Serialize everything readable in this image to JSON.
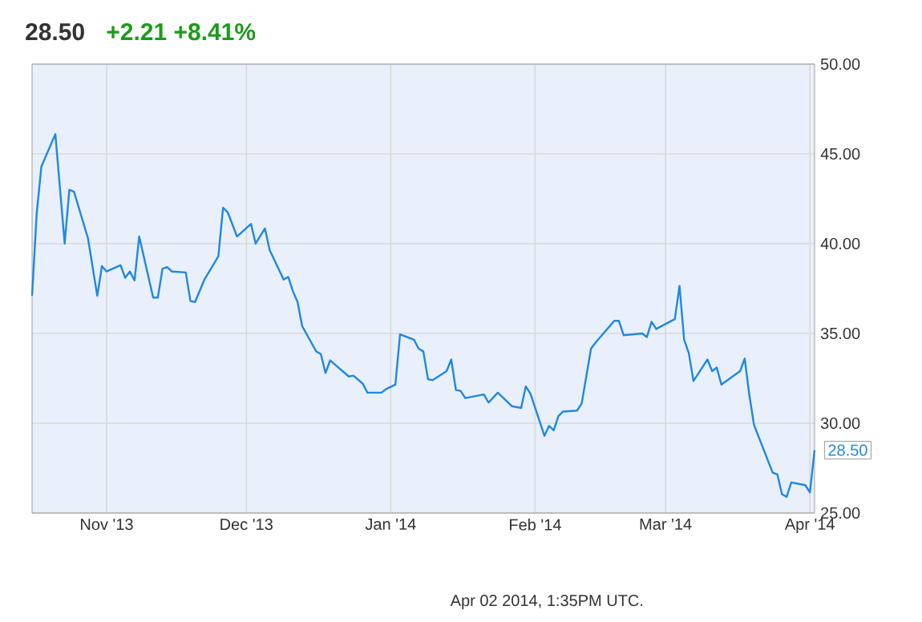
{
  "chart_data": {
    "type": "line",
    "title": "28.50",
    "subtitle": "+2.21  +8.41%",
    "x": [
      "2013-10-16",
      "2013-10-17",
      "2013-10-18",
      "2013-10-21",
      "2013-10-23",
      "2013-10-24",
      "2013-10-25",
      "2013-10-28",
      "2013-10-30",
      "2013-10-31",
      "2013-11-01",
      "2013-11-04",
      "2013-11-05",
      "2013-11-06",
      "2013-11-07",
      "2013-11-08",
      "2013-11-11",
      "2013-11-12",
      "2013-11-13",
      "2013-11-14",
      "2013-11-15",
      "2013-11-18",
      "2013-11-19",
      "2013-11-20",
      "2013-11-22",
      "2013-11-25",
      "2013-11-26",
      "2013-11-27",
      "2013-11-29",
      "2013-12-02",
      "2013-12-03",
      "2013-12-05",
      "2013-12-06",
      "2013-12-09",
      "2013-12-10",
      "2013-12-11",
      "2013-12-12",
      "2013-12-13",
      "2013-12-16",
      "2013-12-17",
      "2013-12-18",
      "2013-12-19",
      "2013-12-23",
      "2013-12-24",
      "2013-12-26",
      "2013-12-27",
      "2013-12-30",
      "2013-12-31",
      "2014-01-02",
      "2014-01-03",
      "2014-01-06",
      "2014-01-07",
      "2014-01-08",
      "2014-01-09",
      "2014-01-10",
      "2014-01-13",
      "2014-01-14",
      "2014-01-15",
      "2014-01-16",
      "2014-01-17",
      "2014-01-21",
      "2014-01-22",
      "2014-01-24",
      "2014-01-27",
      "2014-01-29",
      "2014-01-30",
      "2014-01-31",
      "2014-02-03",
      "2014-02-04",
      "2014-02-05",
      "2014-02-06",
      "2014-02-07",
      "2014-02-10",
      "2014-02-11",
      "2014-02-13",
      "2014-02-14",
      "2014-02-18",
      "2014-02-19",
      "2014-02-20",
      "2014-02-24",
      "2014-02-25",
      "2014-02-26",
      "2014-02-27",
      "2014-03-03",
      "2014-03-04",
      "2014-03-05",
      "2014-03-06",
      "2014-03-07",
      "2014-03-10",
      "2014-03-11",
      "2014-03-12",
      "2014-03-13",
      "2014-03-17",
      "2014-03-18",
      "2014-03-19",
      "2014-03-20",
      "2014-03-24",
      "2014-03-25",
      "2014-03-26",
      "2014-03-27",
      "2014-03-28",
      "2014-03-31",
      "2014-04-01",
      "2014-04-02"
    ],
    "values": [
      37.1,
      41.7,
      44.3,
      46.1,
      40.0,
      43.0,
      42.9,
      40.3,
      37.1,
      38.75,
      38.45,
      38.8,
      38.1,
      38.45,
      37.95,
      40.4,
      37.0,
      37.0,
      38.6,
      38.7,
      38.45,
      38.4,
      36.8,
      36.75,
      38.0,
      39.3,
      42.0,
      41.75,
      40.4,
      41.1,
      40.0,
      40.85,
      39.65,
      38.0,
      38.15,
      37.35,
      36.75,
      35.4,
      34.0,
      33.85,
      32.8,
      33.5,
      32.6,
      32.65,
      32.2,
      31.7,
      31.7,
      31.9,
      32.15,
      34.95,
      34.65,
      34.15,
      34.0,
      32.45,
      32.4,
      32.9,
      33.55,
      31.85,
      31.8,
      31.4,
      31.6,
      31.15,
      31.7,
      30.95,
      30.85,
      32.05,
      31.65,
      29.3,
      29.85,
      29.6,
      30.4,
      30.65,
      30.7,
      31.1,
      34.15,
      34.5,
      35.7,
      35.7,
      34.9,
      35.0,
      34.8,
      35.65,
      35.25,
      35.8,
      37.65,
      34.65,
      33.9,
      32.35,
      33.55,
      32.9,
      33.1,
      32.15,
      32.9,
      33.6,
      31.55,
      29.9,
      27.25,
      27.15,
      26.05,
      25.9,
      26.7,
      26.55,
      26.15,
      28.5
    ],
    "color": "#1e88e5",
    "xlim": [
      "2013-10-16",
      "2014-04-02"
    ],
    "xticks": [
      {
        "value": "2013-11-01",
        "label": "Nov '13"
      },
      {
        "value": "2013-12-01",
        "label": "Dec '13"
      },
      {
        "value": "2014-01-01",
        "label": "Jan '14"
      },
      {
        "value": "2014-02-01",
        "label": "Feb '14"
      },
      {
        "value": "2014-03-01",
        "label": "Mar '14"
      },
      {
        "value": "2014-04-01",
        "label": "Apr '14"
      }
    ],
    "ylim": [
      25,
      50
    ],
    "yticks": [
      {
        "value": 25,
        "label": "25.00"
      },
      {
        "value": 30,
        "label": "30.00"
      },
      {
        "value": 35,
        "label": "35.00"
      },
      {
        "value": 40,
        "label": "40.00"
      },
      {
        "value": 45,
        "label": "45.00"
      },
      {
        "value": 50,
        "label": "50.00"
      }
    ],
    "grid": true,
    "annotations": [
      {
        "text": "28.50",
        "x": "2014-04-02",
        "y": 28.5
      },
      "Apr 02 2014, 1:35PM UTC."
    ]
  }
}
